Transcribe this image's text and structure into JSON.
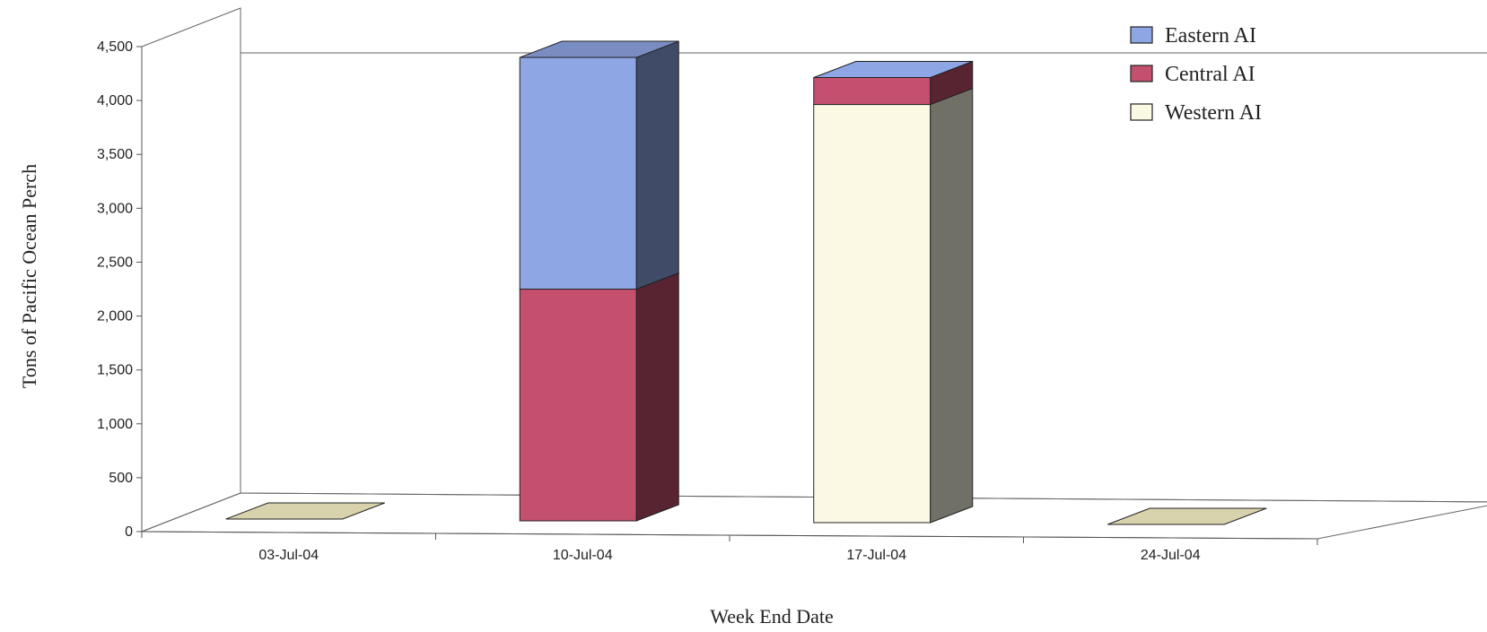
{
  "chart_data": {
    "type": "bar",
    "stacked": true,
    "three_d": true,
    "categories": [
      "03-Jul-04",
      "10-Jul-04",
      "17-Jul-04",
      "24-Jul-04"
    ],
    "series": [
      {
        "name": "Western AI",
        "color": "#fbf9e3",
        "values": [
          0,
          0,
          3880,
          0
        ]
      },
      {
        "name": "Central AI",
        "color": "#c4506e",
        "values": [
          0,
          2150,
          250,
          0
        ]
      },
      {
        "name": "Eastern AI",
        "color": "#8fa6e4",
        "values": [
          0,
          2150,
          0,
          0
        ]
      }
    ],
    "zero_marker_color": "#d8d2ad",
    "xlabel": "Week End Date",
    "ylabel": "Tons of Pacific Ocean Perch",
    "ylim": [
      0,
      4500
    ],
    "yticks": [
      "0",
      "500",
      "1,000",
      "1,500",
      "2,000",
      "2,500",
      "3,000",
      "3,500",
      "4,000",
      "4,500"
    ],
    "legend_position": "top-right",
    "grid": false
  }
}
